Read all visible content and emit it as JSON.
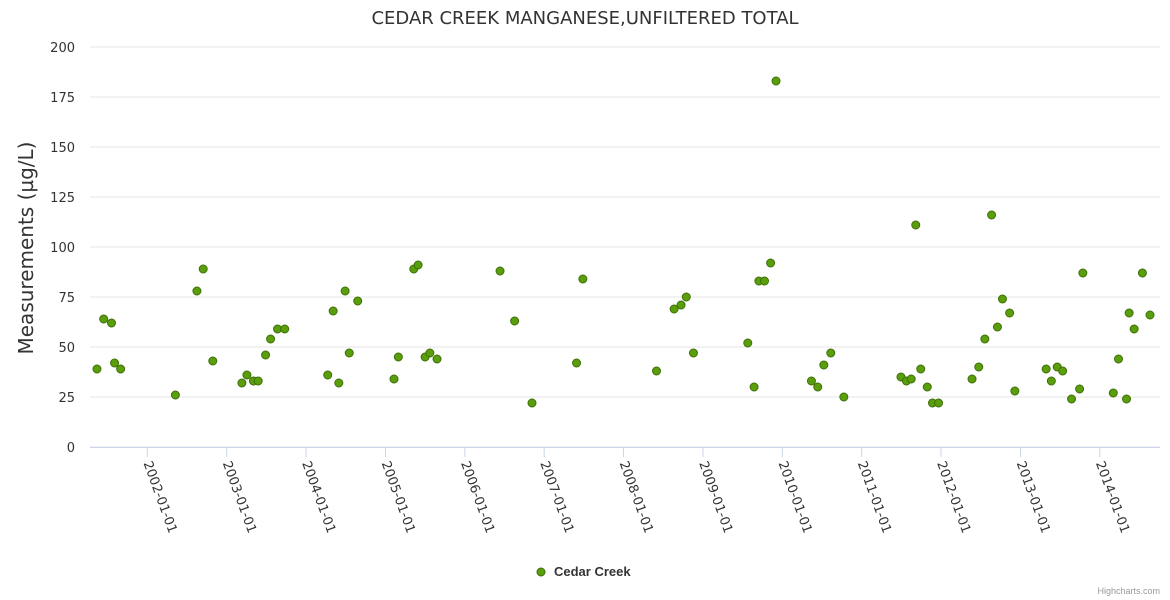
{
  "chart_data": {
    "type": "scatter",
    "title": "CEDAR CREEK MANGANESE,UNFILTERED TOTAL",
    "ylabel": "Measurements (µg/L)",
    "xlabel": "",
    "ylim": [
      0,
      200
    ],
    "xlim": [
      "2001-04-12",
      "2014-10-05"
    ],
    "yticks": [
      "0",
      "25",
      "50",
      "75",
      "100",
      "125",
      "150",
      "175",
      "200"
    ],
    "xticks": [
      "2002-01-01",
      "2003-01-01",
      "2004-01-01",
      "2005-01-01",
      "2006-01-01",
      "2007-01-01",
      "2008-01-01",
      "2009-01-01",
      "2010-01-01",
      "2011-01-01",
      "2012-01-01",
      "2013-01-01",
      "2014-01-01"
    ],
    "grid": true,
    "legend": "bottom-center",
    "series": [
      {
        "name": "Cedar Creek",
        "color": "#5a9e0c",
        "points": [
          {
            "x": "2001-05-14",
            "y": 39
          },
          {
            "x": "2001-06-14",
            "y": 64
          },
          {
            "x": "2001-07-20",
            "y": 62
          },
          {
            "x": "2001-08-03",
            "y": 42
          },
          {
            "x": "2001-08-31",
            "y": 39
          },
          {
            "x": "2002-05-10",
            "y": 26
          },
          {
            "x": "2002-08-17",
            "y": 78
          },
          {
            "x": "2002-09-15",
            "y": 89
          },
          {
            "x": "2002-10-29",
            "y": 43
          },
          {
            "x": "2003-03-12",
            "y": 32
          },
          {
            "x": "2003-04-04",
            "y": 36
          },
          {
            "x": "2003-05-04",
            "y": 33
          },
          {
            "x": "2003-05-26",
            "y": 33
          },
          {
            "x": "2003-06-29",
            "y": 46
          },
          {
            "x": "2003-07-22",
            "y": 54
          },
          {
            "x": "2003-08-23",
            "y": 59
          },
          {
            "x": "2003-09-25",
            "y": 59
          },
          {
            "x": "2004-04-10",
            "y": 36
          },
          {
            "x": "2004-05-05",
            "y": 68
          },
          {
            "x": "2004-05-31",
            "y": 32
          },
          {
            "x": "2004-06-29",
            "y": 78
          },
          {
            "x": "2004-07-18",
            "y": 47
          },
          {
            "x": "2004-08-26",
            "y": 73
          },
          {
            "x": "2005-02-09",
            "y": 34
          },
          {
            "x": "2005-03-01",
            "y": 45
          },
          {
            "x": "2005-05-11",
            "y": 89
          },
          {
            "x": "2005-05-31",
            "y": 91
          },
          {
            "x": "2005-07-02",
            "y": 45
          },
          {
            "x": "2005-07-24",
            "y": 47
          },
          {
            "x": "2005-08-26",
            "y": 44
          },
          {
            "x": "2006-06-12",
            "y": 88
          },
          {
            "x": "2006-08-18",
            "y": 63
          },
          {
            "x": "2006-11-06",
            "y": 22
          },
          {
            "x": "2007-05-30",
            "y": 42
          },
          {
            "x": "2007-06-28",
            "y": 84
          },
          {
            "x": "2008-06-01",
            "y": 38
          },
          {
            "x": "2008-08-21",
            "y": 69
          },
          {
            "x": "2008-09-22",
            "y": 71
          },
          {
            "x": "2008-10-16",
            "y": 75
          },
          {
            "x": "2008-11-18",
            "y": 47
          },
          {
            "x": "2009-07-26",
            "y": 52
          },
          {
            "x": "2009-08-24",
            "y": 30
          },
          {
            "x": "2009-09-15",
            "y": 83
          },
          {
            "x": "2009-10-11",
            "y": 83
          },
          {
            "x": "2009-11-08",
            "y": 92
          },
          {
            "x": "2009-12-03",
            "y": 183
          },
          {
            "x": "2010-05-15",
            "y": 33
          },
          {
            "x": "2010-06-13",
            "y": 30
          },
          {
            "x": "2010-07-11",
            "y": 41
          },
          {
            "x": "2010-08-12",
            "y": 47
          },
          {
            "x": "2010-10-11",
            "y": 25
          },
          {
            "x": "2011-07-01",
            "y": 35
          },
          {
            "x": "2011-07-26",
            "y": 33
          },
          {
            "x": "2011-08-17",
            "y": 34
          },
          {
            "x": "2011-09-07",
            "y": 111
          },
          {
            "x": "2011-09-30",
            "y": 39
          },
          {
            "x": "2011-10-30",
            "y": 30
          },
          {
            "x": "2011-11-23",
            "y": 22
          },
          {
            "x": "2011-12-21",
            "y": 22
          },
          {
            "x": "2012-05-23",
            "y": 34
          },
          {
            "x": "2012-06-23",
            "y": 40
          },
          {
            "x": "2012-07-21",
            "y": 54
          },
          {
            "x": "2012-08-21",
            "y": 116
          },
          {
            "x": "2012-09-17",
            "y": 60
          },
          {
            "x": "2012-10-10",
            "y": 74
          },
          {
            "x": "2012-11-12",
            "y": 67
          },
          {
            "x": "2012-12-06",
            "y": 28
          },
          {
            "x": "2013-04-29",
            "y": 39
          },
          {
            "x": "2013-05-23",
            "y": 33
          },
          {
            "x": "2013-06-19",
            "y": 40
          },
          {
            "x": "2013-07-14",
            "y": 38
          },
          {
            "x": "2013-08-24",
            "y": 24
          },
          {
            "x": "2013-09-30",
            "y": 29
          },
          {
            "x": "2013-10-15",
            "y": 87
          },
          {
            "x": "2014-03-04",
            "y": 27
          },
          {
            "x": "2014-03-28",
            "y": 44
          },
          {
            "x": "2014-05-04",
            "y": 24
          },
          {
            "x": "2014-05-16",
            "y": 67
          },
          {
            "x": "2014-06-08",
            "y": 59
          },
          {
            "x": "2014-07-16",
            "y": 87
          },
          {
            "x": "2014-08-20",
            "y": 66
          }
        ]
      }
    ]
  },
  "legend": {
    "label": "Cedar Creek"
  },
  "credits": "Highcharts.com",
  "colors": {
    "marker_fill": "#5a9e0c",
    "marker_stroke": "#3e6f08",
    "grid": "#e6e6e6",
    "axis": "#ccd6eb"
  }
}
